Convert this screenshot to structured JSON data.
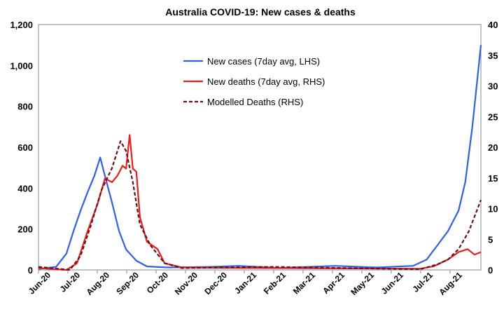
{
  "chart_data": {
    "type": "line",
    "title": "Australia COVID-19: New cases & deaths",
    "x_unit": "months since Jun-20",
    "x_ticks": [
      "Jun-20",
      "Jul-20",
      "Aug-20",
      "Sep-20",
      "Oct-20",
      "Nov-20",
      "Dec-20",
      "Jan-21",
      "Feb-21",
      "Mar-21",
      "Apr-21",
      "May-21",
      "Jun-21",
      "Jul-21",
      "Aug-21"
    ],
    "xlim": [
      0,
      15.05
    ],
    "y_left": {
      "ylim": [
        0,
        1200
      ],
      "ticks": [
        "0",
        "200",
        "400",
        "600",
        "800",
        "1,000",
        "1,200"
      ],
      "values": [
        0,
        200,
        400,
        600,
        800,
        1000,
        1200
      ]
    },
    "y_right": {
      "ylim": [
        0,
        40
      ],
      "ticks": [
        "0",
        "5",
        "10",
        "15",
        "20",
        "25",
        "30",
        "35",
        "40"
      ],
      "values": [
        0,
        5,
        10,
        15,
        20,
        25,
        30,
        35,
        40
      ]
    },
    "legend_position": "top-right",
    "series": [
      {
        "name": "New cases (7day avg, LHS)",
        "axis": "left",
        "color": "#2f5ff0",
        "dash": false,
        "x": [
          0,
          0.6,
          0.95,
          1.19,
          1.43,
          1.67,
          1.9,
          2.1,
          2.26,
          2.5,
          2.74,
          2.98,
          3.33,
          3.69,
          4.4,
          5.83,
          6.8,
          8.2,
          10.1,
          11.5,
          12.74,
          13.2,
          13.57,
          13.93,
          14.29,
          14.52,
          14.76,
          15.05
        ],
        "y": [
          5,
          15,
          80,
          190,
          290,
          380,
          460,
          550,
          460,
          330,
          190,
          100,
          45,
          17,
          12,
          15,
          20,
          10,
          20,
          12,
          20,
          50,
          120,
          190,
          290,
          430,
          700,
          1100
        ]
      },
      {
        "name": "New deaths (7day avg, RHS)",
        "axis": "right",
        "color": "#ee1c1c",
        "dash": false,
        "x": [
          0,
          0.95,
          1.31,
          1.67,
          2.02,
          2.26,
          2.5,
          2.69,
          2.86,
          2.98,
          3.1,
          3.21,
          3.33,
          3.45,
          3.69,
          4.05,
          4.29,
          4.88,
          8,
          12.98,
          13.45,
          13.93,
          14.29,
          14.6,
          14.83,
          15.05
        ],
        "y": [
          0.3,
          0,
          1.1,
          6.3,
          10.9,
          14.9,
          14.3,
          15.4,
          17,
          16.5,
          22,
          16.5,
          16,
          8.6,
          4.6,
          3.4,
          1.1,
          0.4,
          0.3,
          0.2,
          0.6,
          1.7,
          2.9,
          3.4,
          2.5,
          2.9
        ]
      },
      {
        "name": "Modelled Deaths (RHS)",
        "axis": "right",
        "color": "#6b0f14",
        "dash": true,
        "x": [
          0,
          1.07,
          1.43,
          1.79,
          2.14,
          2.5,
          2.79,
          2.98,
          3.21,
          3.45,
          3.81,
          4.29,
          4.88,
          8,
          12.98,
          13.57,
          13.93,
          14.29,
          14.64,
          15.05
        ],
        "y": [
          0.5,
          0,
          2.3,
          7.4,
          13,
          16.6,
          21,
          19.4,
          14.3,
          7.4,
          4,
          1.1,
          0.3,
          0.5,
          0.1,
          0.9,
          1.7,
          3.4,
          6.3,
          11.4
        ]
      }
    ]
  }
}
